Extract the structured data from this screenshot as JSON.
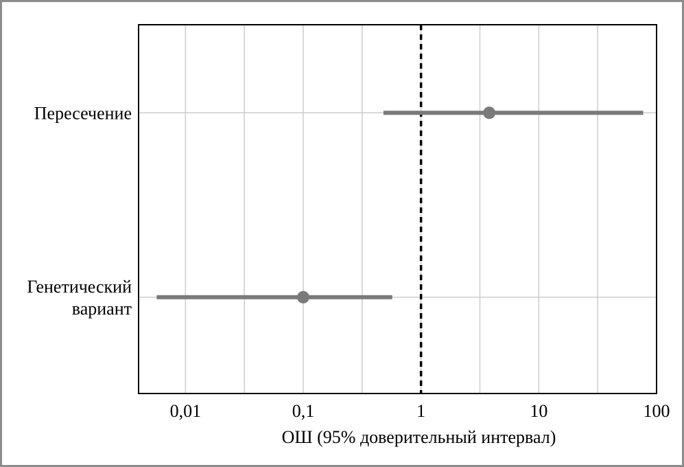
{
  "chart_data": {
    "type": "forest",
    "xscale": "log",
    "xlim": [
      0.004,
      100
    ],
    "x_ticks": [
      0.01,
      0.1,
      1,
      10,
      100
    ],
    "x_tick_labels": [
      "0,01",
      "0,1",
      "1",
      "10",
      "100"
    ],
    "xlabel": "ОШ (95% доверительный интервал)",
    "reference_line": 1,
    "rows": [
      {
        "label_lines": [
          "Пересечение"
        ],
        "estimate": 3.8,
        "ci_low": 0.48,
        "ci_high": 77
      },
      {
        "label_lines": [
          "Генетический",
          "вариант"
        ],
        "estimate": 0.1,
        "ci_low": 0.0057,
        "ci_high": 0.57
      }
    ],
    "grid": true,
    "colors": {
      "point": "#7a7a7a",
      "ci": "#7a7a7a",
      "grid": "#cccccc",
      "reference": "#000000",
      "frame": "#000000"
    }
  }
}
